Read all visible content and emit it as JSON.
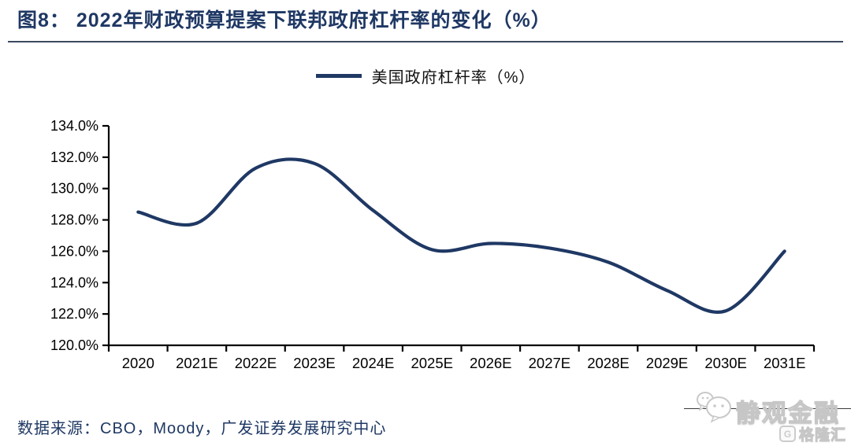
{
  "header": {
    "title": "图8： 2022年财政预算提案下联邦政府杠杆率的变化（%）"
  },
  "legend": {
    "label": "美国政府杠杆率（%）"
  },
  "footer": {
    "source": "数据来源：CBO，Moody，广发证券发展研究中心"
  },
  "watermark": {
    "brand": "静观金融",
    "logo_mark": "G",
    "logo_text": "格隆汇"
  },
  "colors": {
    "line": "#1f3864",
    "title": "#1f3864",
    "axis": "#000000",
    "tick_label": "#000000"
  },
  "chart_data": {
    "type": "line",
    "title": "美国政府杠杆率（%）",
    "categories": [
      "2020",
      "2021E",
      "2022E",
      "2023E",
      "2024E",
      "2025E",
      "2026E",
      "2027E",
      "2028E",
      "2029E",
      "2030E",
      "2031E"
    ],
    "series": [
      {
        "name": "美国政府杠杆率（%）",
        "values": [
          128.5,
          127.8,
          131.3,
          131.6,
          128.6,
          126.1,
          126.5,
          126.2,
          125.3,
          123.5,
          122.2,
          126.0
        ]
      }
    ],
    "xlabel": "",
    "ylabel": "",
    "ylim": [
      120,
      134
    ],
    "ytick_step": 2,
    "ytick_suffix": "%",
    "ytick_decimals": 1,
    "grid": false,
    "smooth": true,
    "legend_position": "top-center",
    "line_color": "#1f3864"
  }
}
